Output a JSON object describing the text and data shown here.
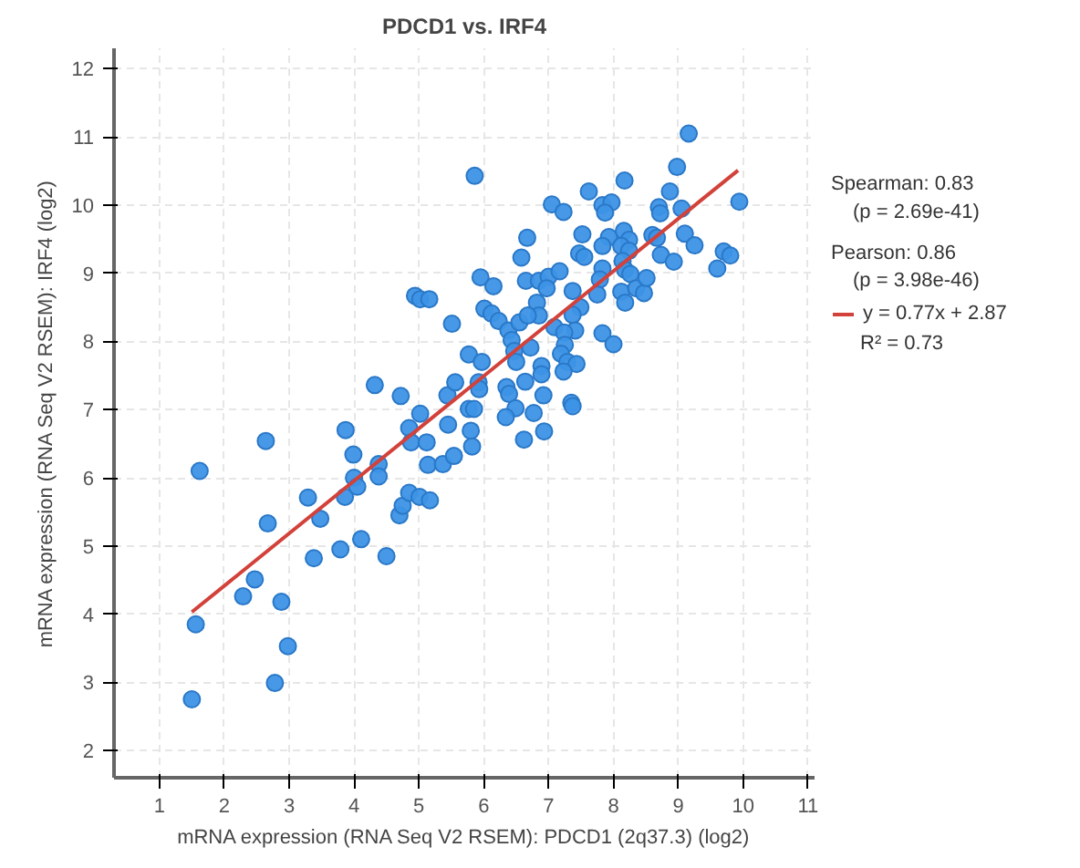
{
  "chart_data": {
    "type": "scatter",
    "title": "PDCD1 vs. IRF4",
    "xlabel": "mRNA expression (RNA Seq V2 RSEM): PDCD1 (2q37.3) (log2)",
    "ylabel": "mRNA expression (RNA Seq V2 RSEM): IRF4 (log2)",
    "xlim": [
      0.3,
      11.1
    ],
    "ylim": [
      1.6,
      12.3
    ],
    "xticks": [
      1,
      2,
      3,
      4,
      5,
      6,
      7,
      8,
      9,
      10,
      11
    ],
    "yticks": [
      2,
      3,
      4,
      5,
      6,
      7,
      8,
      9,
      10,
      11,
      12
    ],
    "grid": true,
    "legend": "right",
    "annotations": [
      "Spearman: 0.83",
      "(p = 2.69e-41)",
      "Pearson: 0.86",
      "(p = 3.98e-46)",
      "R² = 0.73"
    ],
    "series": [
      {
        "marker": "circle",
        "color": "#3d94e6",
        "x": [
          1.5,
          1.56,
          1.62,
          2.64,
          2.67,
          2.29,
          2.47,
          2.88,
          2.98,
          2.78,
          3.29,
          3.48,
          3.38,
          3.79,
          3.87,
          3.86,
          3.99,
          4.0,
          4.05,
          4.11,
          4.38,
          4.38,
          4.5,
          4.32,
          4.72,
          4.85,
          4.88,
          5.12,
          5.02,
          4.7,
          4.75,
          4.85,
          5.01,
          5.17,
          5.14,
          5.37,
          5.54,
          5.45,
          5.44,
          5.77,
          5.8,
          5.82,
          5.86,
          4.94,
          5.02,
          5.16,
          5.51,
          5.77,
          5.56,
          9.16,
          8.98,
          9.94,
          8.17,
          7.62,
          8.87,
          7.05,
          7.23,
          7.83,
          7.97,
          7.87,
          8.7,
          8.72,
          9.05,
          6.67,
          7.52,
          7.93,
          8.16,
          8.24,
          8.6,
          8.67,
          9.1,
          9.25,
          9.7,
          9.8,
          9.6,
          6.58,
          7.47,
          7.55,
          7.83,
          8.12,
          8.24,
          8.73,
          8.93,
          8.14,
          7.83,
          8.18,
          8.26,
          5.95,
          6.15,
          6.65,
          6.85,
          7.0,
          7.17,
          6.97,
          7.37,
          7.79,
          7.75,
          8.12,
          8.35,
          8.47,
          8.51,
          8.18,
          6.01,
          6.12,
          6.23,
          6.82,
          6.85,
          7.49,
          7.37,
          6.38,
          6.55,
          6.68,
          7.09,
          7.41,
          6.43,
          6.47,
          6.72,
          7.24,
          7.25,
          7.83,
          8.0,
          5.97,
          7.19,
          7.29,
          7.43,
          6.5,
          6.89,
          6.89,
          6.64,
          7.23,
          5.92,
          6.35,
          6.39,
          6.92,
          5.85,
          6.49,
          6.77,
          7.35,
          7.37,
          6.34,
          5.93,
          6.93,
          6.62
        ],
        "values": [
          2.75,
          3.85,
          6.1,
          6.54,
          5.33,
          4.26,
          4.51,
          4.18,
          3.53,
          2.99,
          5.71,
          5.4,
          4.82,
          4.95,
          6.7,
          5.72,
          6.34,
          6.0,
          5.87,
          5.1,
          6.2,
          6.02,
          4.85,
          7.36,
          7.2,
          6.73,
          6.52,
          6.52,
          6.94,
          5.45,
          5.59,
          5.78,
          5.72,
          5.67,
          6.19,
          6.2,
          6.32,
          6.78,
          7.21,
          7.01,
          6.69,
          6.46,
          10.43,
          8.67,
          8.62,
          8.62,
          8.26,
          7.81,
          7.4,
          11.05,
          10.56,
          10.05,
          10.36,
          10.2,
          10.2,
          10.01,
          9.9,
          10.0,
          10.04,
          9.89,
          9.97,
          9.88,
          9.95,
          9.52,
          9.57,
          9.53,
          9.62,
          9.49,
          9.56,
          9.52,
          9.58,
          9.41,
          9.32,
          9.26,
          9.07,
          9.23,
          9.29,
          9.24,
          9.4,
          9.4,
          9.33,
          9.27,
          9.17,
          9.18,
          9.07,
          9.05,
          8.99,
          8.94,
          8.81,
          8.89,
          8.89,
          8.95,
          9.03,
          8.78,
          8.74,
          8.91,
          8.69,
          8.73,
          8.78,
          8.71,
          8.93,
          8.57,
          8.48,
          8.41,
          8.3,
          8.57,
          8.38,
          8.5,
          8.39,
          8.16,
          8.28,
          8.38,
          8.21,
          8.16,
          8.02,
          7.86,
          7.91,
          8.13,
          7.95,
          8.12,
          7.96,
          7.7,
          7.82,
          7.7,
          7.67,
          7.7,
          7.64,
          7.52,
          7.41,
          7.56,
          7.4,
          7.33,
          7.23,
          7.21,
          7.01,
          7.02,
          6.95,
          7.1,
          7.05,
          6.89,
          7.3,
          6.68,
          6.56
        ]
      },
      {
        "type": "line",
        "name": "y = 0.77x + 2.87",
        "color": "#d2413a",
        "x": [
          1.5,
          9.92
        ],
        "values": [
          4.03,
          10.51
        ]
      }
    ]
  }
}
